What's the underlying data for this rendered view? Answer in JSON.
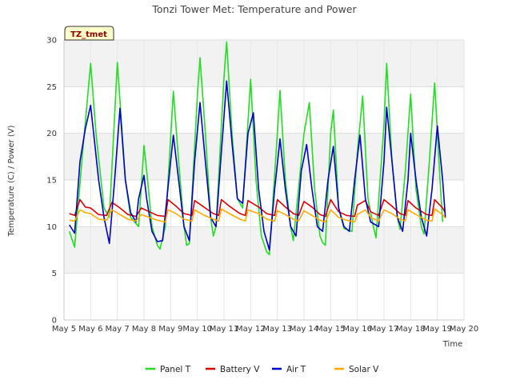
{
  "chart_data": {
    "type": "line",
    "title": "Tonzi Tower Met: Temperature and Power",
    "xlabel": "Time",
    "ylabel": "Temperature (C) / Power (V)",
    "tag_label": "TZ_tmet",
    "ylim": [
      0,
      30
    ],
    "yticks": [
      0,
      5,
      10,
      15,
      20,
      25,
      30
    ],
    "xlim": [
      5,
      20
    ],
    "xticks": [
      {
        "v": 5,
        "label": "May 5"
      },
      {
        "v": 6,
        "label": "May 6"
      },
      {
        "v": 7,
        "label": "May 7"
      },
      {
        "v": 8,
        "label": "May 8"
      },
      {
        "v": 9,
        "label": "May 9"
      },
      {
        "v": 10,
        "label": "May 10"
      },
      {
        "v": 11,
        "label": "May 11"
      },
      {
        "v": 12,
        "label": "May 12"
      },
      {
        "v": 13,
        "label": "May 13"
      },
      {
        "v": 14,
        "label": "May 14"
      },
      {
        "v": 15,
        "label": "May 15"
      },
      {
        "v": 16,
        "label": "May 16"
      },
      {
        "v": 17,
        "label": "May 17"
      },
      {
        "v": 18,
        "label": "May 18"
      },
      {
        "v": 19,
        "label": "May 19"
      },
      {
        "v": 20,
        "label": "May 20"
      }
    ],
    "grid": true,
    "legend_position": "bottom",
    "series": [
      {
        "name": "Panel T",
        "color": "#22dd22",
        "points": [
          [
            5.2,
            9.5
          ],
          [
            5.4,
            7.8
          ],
          [
            5.7,
            18
          ],
          [
            6.0,
            27.5
          ],
          [
            6.2,
            20
          ],
          [
            6.5,
            12
          ],
          [
            6.7,
            11
          ],
          [
            7.0,
            27.6
          ],
          [
            7.3,
            15
          ],
          [
            7.5,
            11
          ],
          [
            7.8,
            10
          ],
          [
            8.0,
            18.7
          ],
          [
            8.1,
            16
          ],
          [
            8.3,
            10
          ],
          [
            8.5,
            8
          ],
          [
            8.6,
            7.6
          ],
          [
            8.8,
            10
          ],
          [
            9.1,
            24.5
          ],
          [
            9.3,
            17
          ],
          [
            9.5,
            10
          ],
          [
            9.6,
            8
          ],
          [
            9.7,
            8.2
          ],
          [
            10.0,
            24
          ],
          [
            10.1,
            28.1
          ],
          [
            10.3,
            20
          ],
          [
            10.5,
            11
          ],
          [
            10.6,
            9
          ],
          [
            10.7,
            10
          ],
          [
            11.0,
            26
          ],
          [
            11.1,
            29.8
          ],
          [
            11.3,
            20
          ],
          [
            11.5,
            13
          ],
          [
            11.7,
            12
          ],
          [
            12.0,
            25.8
          ],
          [
            12.2,
            15
          ],
          [
            12.4,
            9
          ],
          [
            12.6,
            7.3
          ],
          [
            12.7,
            7
          ],
          [
            13.0,
            20
          ],
          [
            13.1,
            24.6
          ],
          [
            13.3,
            15
          ],
          [
            13.5,
            10
          ],
          [
            13.6,
            8.5
          ],
          [
            14.0,
            20
          ],
          [
            14.2,
            23.3
          ],
          [
            14.4,
            14
          ],
          [
            14.6,
            9
          ],
          [
            14.7,
            8.3
          ],
          [
            14.8,
            8
          ],
          [
            15.0,
            20
          ],
          [
            15.1,
            22.5
          ],
          [
            15.3,
            12
          ],
          [
            15.5,
            9.8
          ],
          [
            15.8,
            9.5
          ],
          [
            16.0,
            18
          ],
          [
            16.2,
            24
          ],
          [
            16.4,
            13
          ],
          [
            16.6,
            10
          ],
          [
            16.7,
            8.8
          ],
          [
            17.0,
            21
          ],
          [
            17.1,
            27.5
          ],
          [
            17.3,
            17
          ],
          [
            17.5,
            11
          ],
          [
            17.6,
            9.7
          ],
          [
            17.8,
            16
          ],
          [
            18.0,
            24.2
          ],
          [
            18.2,
            14
          ],
          [
            18.4,
            10
          ],
          [
            18.5,
            9.2
          ],
          [
            18.7,
            17
          ],
          [
            18.9,
            25.4
          ],
          [
            19.1,
            15
          ],
          [
            19.2,
            10.5
          ]
        ]
      },
      {
        "name": "Battery V",
        "color": "#dd0000",
        "points": [
          [
            5.2,
            11.4
          ],
          [
            5.4,
            11.2
          ],
          [
            5.6,
            12.9
          ],
          [
            5.8,
            12.1
          ],
          [
            6.0,
            12.0
          ],
          [
            6.3,
            11.3
          ],
          [
            6.6,
            11.2
          ],
          [
            6.8,
            12.6
          ],
          [
            7.1,
            12.0
          ],
          [
            7.4,
            11.3
          ],
          [
            7.7,
            11.1
          ],
          [
            7.9,
            12.0
          ],
          [
            8.2,
            11.6
          ],
          [
            8.5,
            11.2
          ],
          [
            8.8,
            11.1
          ],
          [
            8.9,
            12.9
          ],
          [
            9.2,
            12.2
          ],
          [
            9.5,
            11.4
          ],
          [
            9.8,
            11.2
          ],
          [
            9.9,
            12.8
          ],
          [
            10.2,
            12.2
          ],
          [
            10.6,
            11.4
          ],
          [
            10.8,
            11.2
          ],
          [
            10.9,
            12.9
          ],
          [
            11.2,
            12.2
          ],
          [
            11.6,
            11.4
          ],
          [
            11.8,
            11.2
          ],
          [
            11.9,
            12.8
          ],
          [
            12.3,
            12.1
          ],
          [
            12.6,
            11.4
          ],
          [
            12.9,
            11.2
          ],
          [
            13.0,
            12.9
          ],
          [
            13.3,
            12.1
          ],
          [
            13.6,
            11.4
          ],
          [
            13.8,
            11.2
          ],
          [
            14.0,
            12.7
          ],
          [
            14.3,
            12.1
          ],
          [
            14.6,
            11.3
          ],
          [
            14.8,
            11.1
          ],
          [
            15.0,
            12.9
          ],
          [
            15.3,
            11.6
          ],
          [
            15.6,
            11.2
          ],
          [
            15.9,
            11.1
          ],
          [
            16.0,
            12.3
          ],
          [
            16.3,
            12.8
          ],
          [
            16.5,
            11.6
          ],
          [
            16.8,
            11.2
          ],
          [
            17.0,
            12.9
          ],
          [
            17.3,
            12.2
          ],
          [
            17.6,
            11.4
          ],
          [
            17.8,
            11.2
          ],
          [
            17.9,
            12.8
          ],
          [
            18.2,
            12.0
          ],
          [
            18.6,
            11.3
          ],
          [
            18.8,
            11.2
          ],
          [
            18.9,
            12.9
          ],
          [
            19.2,
            12.0
          ],
          [
            19.3,
            11.5
          ]
        ]
      },
      {
        "name": "Air T",
        "color": "#0000cc",
        "points": [
          [
            5.2,
            10.2
          ],
          [
            5.4,
            9.3
          ],
          [
            5.6,
            17
          ],
          [
            5.8,
            20.5
          ],
          [
            6.0,
            23
          ],
          [
            6.3,
            15
          ],
          [
            6.5,
            11
          ],
          [
            6.7,
            8.2
          ],
          [
            6.9,
            15
          ],
          [
            7.1,
            22.7
          ],
          [
            7.3,
            15
          ],
          [
            7.5,
            11.5
          ],
          [
            7.7,
            10.5
          ],
          [
            7.8,
            13
          ],
          [
            8.0,
            15.5
          ],
          [
            8.1,
            13
          ],
          [
            8.3,
            9.5
          ],
          [
            8.5,
            8.4
          ],
          [
            8.7,
            8.5
          ],
          [
            9.0,
            17
          ],
          [
            9.1,
            19.8
          ],
          [
            9.3,
            15
          ],
          [
            9.5,
            10
          ],
          [
            9.7,
            8.5
          ],
          [
            9.9,
            17
          ],
          [
            10.1,
            23.3
          ],
          [
            10.3,
            17
          ],
          [
            10.5,
            11
          ],
          [
            10.7,
            10
          ],
          [
            10.9,
            18
          ],
          [
            11.1,
            25.6
          ],
          [
            11.3,
            19
          ],
          [
            11.5,
            13
          ],
          [
            11.7,
            12.5
          ],
          [
            11.9,
            20
          ],
          [
            12.1,
            22.2
          ],
          [
            12.3,
            14
          ],
          [
            12.5,
            9.5
          ],
          [
            12.7,
            7.5
          ],
          [
            12.9,
            14
          ],
          [
            13.1,
            19.4
          ],
          [
            13.3,
            14
          ],
          [
            13.5,
            10
          ],
          [
            13.7,
            9
          ],
          [
            13.9,
            16
          ],
          [
            14.1,
            18.8
          ],
          [
            14.3,
            14
          ],
          [
            14.5,
            10
          ],
          [
            14.7,
            9.5
          ],
          [
            14.9,
            15
          ],
          [
            15.1,
            18.6
          ],
          [
            15.3,
            12
          ],
          [
            15.5,
            10
          ],
          [
            15.7,
            9.5
          ],
          [
            15.9,
            15
          ],
          [
            16.1,
            19.8
          ],
          [
            16.3,
            13
          ],
          [
            16.5,
            10.5
          ],
          [
            16.8,
            10
          ],
          [
            17.0,
            17
          ],
          [
            17.1,
            22.8
          ],
          [
            17.3,
            17
          ],
          [
            17.5,
            11
          ],
          [
            17.7,
            9.5
          ],
          [
            17.9,
            15
          ],
          [
            18.0,
            20
          ],
          [
            18.2,
            15
          ],
          [
            18.4,
            11
          ],
          [
            18.6,
            9
          ],
          [
            18.8,
            14
          ],
          [
            19.0,
            20.8
          ],
          [
            19.2,
            15
          ],
          [
            19.3,
            11
          ]
        ]
      },
      {
        "name": "Solar V",
        "color": "#ffaa00",
        "points": [
          [
            5.2,
            10.7
          ],
          [
            5.4,
            10.6
          ],
          [
            5.6,
            11.8
          ],
          [
            5.8,
            11.5
          ],
          [
            6.0,
            11.4
          ],
          [
            6.3,
            10.8
          ],
          [
            6.6,
            10.7
          ],
          [
            6.8,
            11.8
          ],
          [
            7.1,
            11.3
          ],
          [
            7.4,
            10.8
          ],
          [
            7.7,
            10.6
          ],
          [
            7.9,
            11.3
          ],
          [
            8.2,
            11.0
          ],
          [
            8.5,
            10.7
          ],
          [
            8.8,
            10.5
          ],
          [
            8.9,
            11.8
          ],
          [
            9.2,
            11.4
          ],
          [
            9.5,
            10.8
          ],
          [
            9.8,
            10.6
          ],
          [
            9.9,
            11.8
          ],
          [
            10.2,
            11.3
          ],
          [
            10.6,
            10.8
          ],
          [
            10.8,
            10.6
          ],
          [
            10.9,
            11.9
          ],
          [
            11.2,
            11.4
          ],
          [
            11.6,
            10.8
          ],
          [
            11.8,
            10.6
          ],
          [
            11.9,
            11.8
          ],
          [
            12.3,
            11.4
          ],
          [
            12.6,
            10.8
          ],
          [
            12.9,
            10.6
          ],
          [
            13.0,
            11.7
          ],
          [
            13.3,
            11.3
          ],
          [
            13.6,
            10.8
          ],
          [
            13.8,
            10.6
          ],
          [
            14.0,
            11.7
          ],
          [
            14.3,
            11.2
          ],
          [
            14.6,
            10.7
          ],
          [
            14.8,
            10.5
          ],
          [
            15.0,
            11.8
          ],
          [
            15.3,
            11.0
          ],
          [
            15.6,
            10.7
          ],
          [
            15.9,
            10.5
          ],
          [
            16.0,
            11.3
          ],
          [
            16.3,
            11.8
          ],
          [
            16.5,
            11.0
          ],
          [
            16.8,
            10.6
          ],
          [
            17.0,
            11.8
          ],
          [
            17.3,
            11.4
          ],
          [
            17.6,
            10.8
          ],
          [
            17.8,
            10.6
          ],
          [
            17.9,
            11.8
          ],
          [
            18.2,
            11.3
          ],
          [
            18.6,
            10.7
          ],
          [
            18.8,
            10.6
          ],
          [
            18.9,
            11.9
          ],
          [
            19.2,
            11.3
          ],
          [
            19.3,
            10.9
          ]
        ]
      }
    ]
  }
}
